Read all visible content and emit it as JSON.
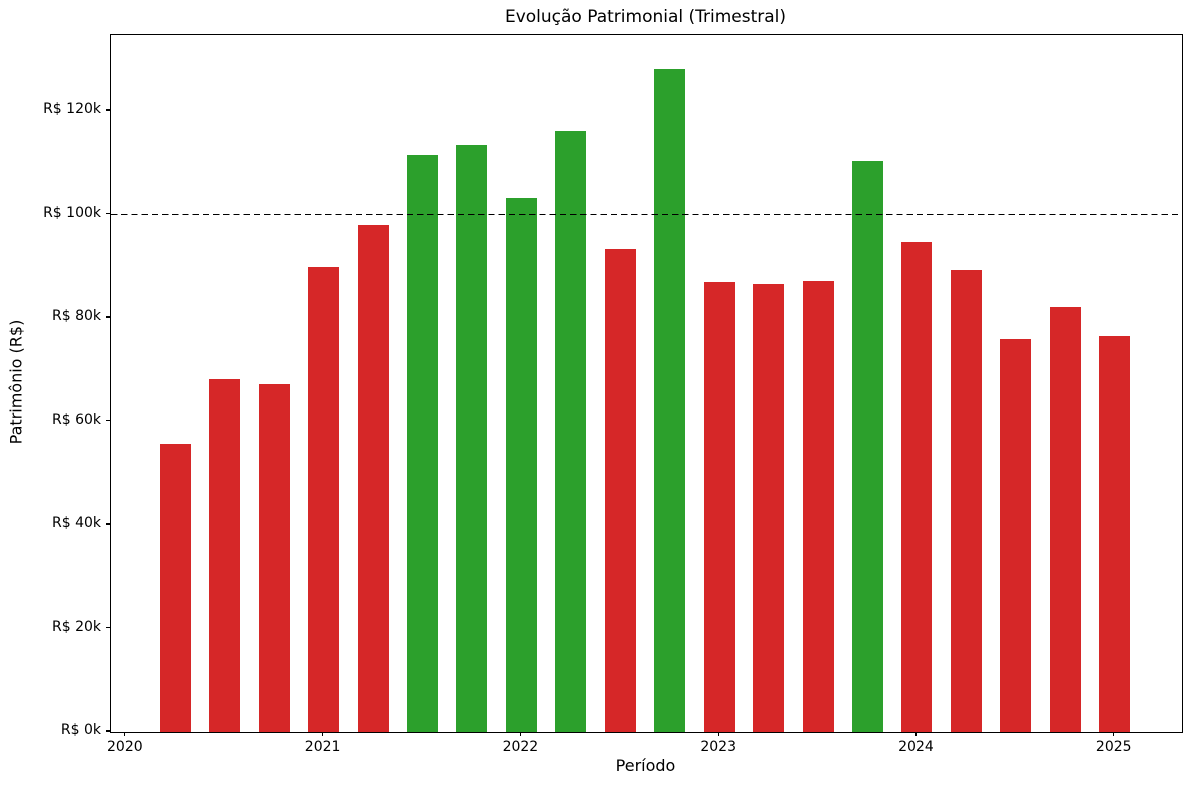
{
  "chart_data": {
    "type": "bar",
    "title": "Evolução Patrimonial (Trimestral)",
    "xlabel": "Período",
    "ylabel": "Patrimônio (R$)",
    "categories": [
      "2020-Q2",
      "2020-Q3",
      "2020-Q4",
      "2021-Q1",
      "2021-Q2",
      "2021-Q3",
      "2021-Q4",
      "2022-Q1",
      "2022-Q2",
      "2022-Q3",
      "2022-Q4",
      "2023-Q1",
      "2023-Q2",
      "2023-Q3",
      "2023-Q4",
      "2024-Q1",
      "2024-Q2",
      "2024-Q3",
      "2024-Q4",
      "2025-Q1"
    ],
    "x_decimal_years": [
      2020.25,
      2020.5,
      2020.75,
      2021.0,
      2021.25,
      2021.5,
      2021.75,
      2022.0,
      2022.25,
      2022.5,
      2022.75,
      2023.0,
      2023.25,
      2023.5,
      2023.75,
      2024.0,
      2024.25,
      2024.5,
      2024.75,
      2025.0
    ],
    "values_thousands_brl": [
      55.7,
      68.2,
      67.2,
      89.8,
      98.0,
      111.6,
      113.4,
      103.2,
      116.2,
      93.3,
      128.2,
      86.9,
      86.5,
      87.1,
      110.4,
      94.6,
      89.2,
      75.9,
      82.2,
      76.6
    ],
    "threshold_rule": {
      "threshold_thousands": 100,
      "color_above": "#2ca02c",
      "color_below": "#d62728"
    },
    "reference_line": {
      "value_thousands": 100,
      "style": "dashed",
      "color": "#000000"
    },
    "x_ticks": {
      "values": [
        2020,
        2021,
        2022,
        2023,
        2024,
        2025
      ],
      "labels": [
        "2020",
        "2021",
        "2022",
        "2023",
        "2024",
        "2025"
      ]
    },
    "y_ticks": {
      "values_thousands": [
        0,
        20,
        40,
        60,
        80,
        100,
        120
      ],
      "labels": [
        "R$ 0k",
        "R$ 20k",
        "R$ 40k",
        "R$ 60k",
        "R$ 80k",
        "R$ 100k",
        "R$ 120k"
      ]
    },
    "xlim_decimal_years": [
      2019.925,
      2025.34
    ],
    "ylim_thousands": [
      0,
      134.7
    ],
    "grid": false,
    "legend": null,
    "background": "#ffffff",
    "axis_color": "#000000"
  }
}
